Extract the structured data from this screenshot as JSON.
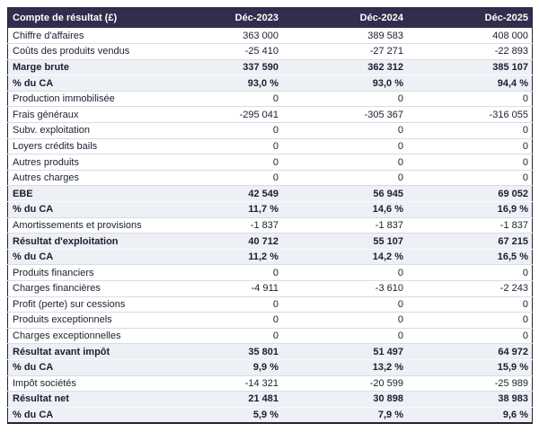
{
  "colors": {
    "header_bg": "#302e4c",
    "header_text": "#ffffff",
    "emphasis_row_bg": "#edf1f6",
    "row_border": "#d9dce2",
    "outer_border": "#23223a",
    "body_text": "#1d1d31"
  },
  "chart_data": {
    "type": "table",
    "title": "Compte de résultat (£)",
    "columns": [
      "Compte de résultat (£)",
      "Déc-2023",
      "Déc-2024",
      "Déc-2025"
    ],
    "rows": [
      {
        "label": "Chiffre d'affaires",
        "values": [
          "363 000",
          "389 583",
          "408 000"
        ],
        "emphasis": false
      },
      {
        "label": "Coûts des produits vendus",
        "values": [
          "-25 410",
          "-27 271",
          "-22 893"
        ],
        "emphasis": false
      },
      {
        "label": "Marge brute",
        "values": [
          "337 590",
          "362 312",
          "385 107"
        ],
        "emphasis": true
      },
      {
        "label": "% du CA",
        "values": [
          "93,0 %",
          "93,0 %",
          "94,4 %"
        ],
        "emphasis": true
      },
      {
        "label": "Production immobilisée",
        "values": [
          "0",
          "0",
          "0"
        ],
        "emphasis": false
      },
      {
        "label": "Frais généraux",
        "values": [
          "-295 041",
          "-305 367",
          "-316 055"
        ],
        "emphasis": false
      },
      {
        "label": "Subv. exploitation",
        "values": [
          "0",
          "0",
          "0"
        ],
        "emphasis": false
      },
      {
        "label": "Loyers crédits bails",
        "values": [
          "0",
          "0",
          "0"
        ],
        "emphasis": false
      },
      {
        "label": "Autres produits",
        "values": [
          "0",
          "0",
          "0"
        ],
        "emphasis": false
      },
      {
        "label": "Autres charges",
        "values": [
          "0",
          "0",
          "0"
        ],
        "emphasis": false
      },
      {
        "label": "EBE",
        "values": [
          "42 549",
          "56 945",
          "69 052"
        ],
        "emphasis": true
      },
      {
        "label": "% du CA",
        "values": [
          "11,7 %",
          "14,6 %",
          "16,9 %"
        ],
        "emphasis": true
      },
      {
        "label": "Amortissements et provisions",
        "values": [
          "-1 837",
          "-1 837",
          "-1 837"
        ],
        "emphasis": false
      },
      {
        "label": "Résultat d'exploitation",
        "values": [
          "40 712",
          "55 107",
          "67 215"
        ],
        "emphasis": true
      },
      {
        "label": "% du CA",
        "values": [
          "11,2 %",
          "14,2 %",
          "16,5 %"
        ],
        "emphasis": true
      },
      {
        "label": "Produits financiers",
        "values": [
          "0",
          "0",
          "0"
        ],
        "emphasis": false
      },
      {
        "label": "Charges financières",
        "values": [
          "-4 911",
          "-3 610",
          "-2 243"
        ],
        "emphasis": false
      },
      {
        "label": "Profit (perte) sur cessions",
        "values": [
          "0",
          "0",
          "0"
        ],
        "emphasis": false
      },
      {
        "label": "Produits exceptionnels",
        "values": [
          "0",
          "0",
          "0"
        ],
        "emphasis": false
      },
      {
        "label": "Charges exceptionnelles",
        "values": [
          "0",
          "0",
          "0"
        ],
        "emphasis": false
      },
      {
        "label": "Résultat avant impôt",
        "values": [
          "35 801",
          "51 497",
          "64 972"
        ],
        "emphasis": true
      },
      {
        "label": "% du CA",
        "values": [
          "9,9 %",
          "13,2 %",
          "15,9 %"
        ],
        "emphasis": true
      },
      {
        "label": "Impôt sociétés",
        "values": [
          "-14 321",
          "-20 599",
          "-25 989"
        ],
        "emphasis": false
      },
      {
        "label": "Résultat net",
        "values": [
          "21 481",
          "30 898",
          "38 983"
        ],
        "emphasis": true
      },
      {
        "label": "% du CA",
        "values": [
          "5,9 %",
          "7,9 %",
          "9,6 %"
        ],
        "emphasis": true
      }
    ]
  }
}
